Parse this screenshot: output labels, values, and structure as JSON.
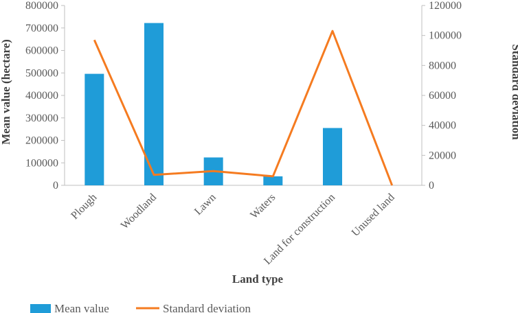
{
  "chart_data": {
    "type": "bar",
    "categories": [
      "Plough",
      "Woodland",
      "Lawn",
      "Waters",
      "Land for construction",
      "Unused land"
    ],
    "series": [
      {
        "name": "Mean value",
        "type": "bar",
        "axis": "left",
        "values": [
          496000,
          722000,
          124000,
          40000,
          255000,
          0
        ]
      },
      {
        "name": "Standard deviation",
        "type": "line",
        "axis": "right",
        "values": [
          97000,
          7000,
          9500,
          6000,
          103000,
          0
        ]
      }
    ],
    "xlabel": "Land type",
    "ylabel": "Mean value (hectare)",
    "y2label": "Standard deviation",
    "ylim": [
      0,
      800000
    ],
    "y2lim": [
      0,
      120000
    ],
    "yticks": [
      0,
      100000,
      200000,
      300000,
      400000,
      500000,
      600000,
      700000,
      800000
    ],
    "y2ticks": [
      0,
      20000,
      40000,
      60000,
      80000,
      100000,
      120000
    ],
    "grid": false,
    "legend_position": "bottom",
    "colors": {
      "bar": "#1f9cd8",
      "line": "#f57b20",
      "axis": "#bfbfbf"
    }
  }
}
